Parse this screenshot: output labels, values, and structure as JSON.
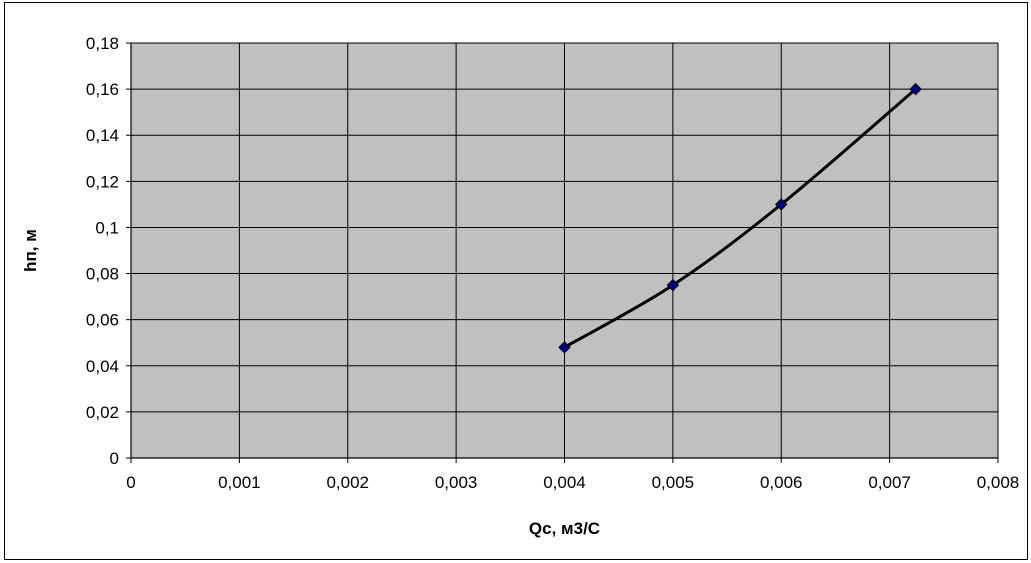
{
  "chart_data": {
    "type": "scatter",
    "title": "",
    "xlabel": "Qc, м3/С",
    "ylabel": "hп, м",
    "xlim": [
      0,
      0.008
    ],
    "ylim": [
      0,
      0.18
    ],
    "grid": true,
    "legend": "none",
    "x_ticks": [
      "0",
      "0,001",
      "0,002",
      "0,003",
      "0,004",
      "0,005",
      "0,006",
      "0,007",
      "0,008"
    ],
    "y_ticks": [
      "0",
      "0,02",
      "0,04",
      "0,06",
      "0,08",
      "0,1",
      "0,12",
      "0,14",
      "0,16",
      "0,18"
    ],
    "series": [
      {
        "x": [
          0.004,
          0.005,
          0.006,
          0.00724
        ],
        "y": [
          0.048,
          0.075,
          0.11,
          0.16
        ],
        "line": "smooth",
        "marker": "diamond"
      }
    ],
    "colors": {
      "plot_background": "#c0c0c0",
      "gridline": "#000000",
      "line": "#000000",
      "marker_fill": "#000080",
      "marker_edge": "#000000"
    }
  }
}
